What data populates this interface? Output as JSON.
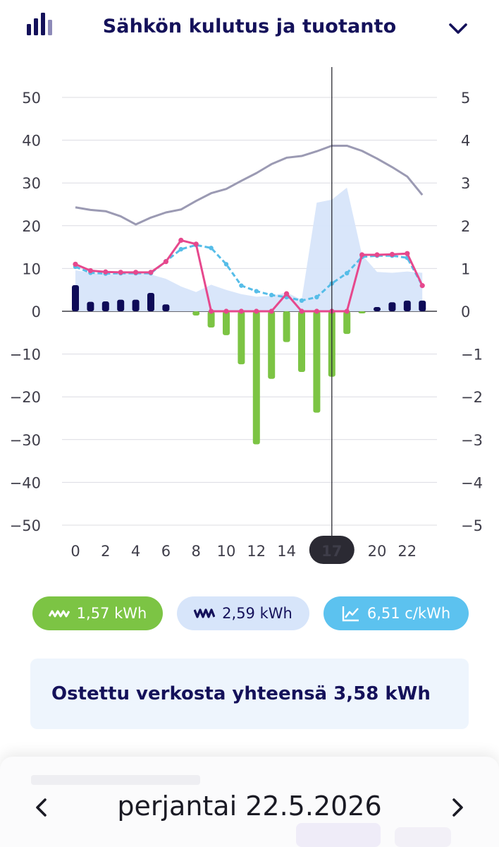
{
  "header": {
    "title": "Sähkön kulutus ja tuotanto",
    "left_icon": "bar-chart-icon",
    "right_icon": "chevron-down-icon"
  },
  "chart_data": {
    "type": "bar",
    "x": [
      0,
      1,
      2,
      3,
      4,
      5,
      6,
      7,
      8,
      9,
      10,
      11,
      12,
      13,
      14,
      15,
      16,
      17,
      18,
      19,
      20,
      21,
      22,
      23
    ],
    "x_tick_labels": [
      "0",
      "2",
      "4",
      "6",
      "8",
      "10",
      "12",
      "14",
      "17",
      "20",
      "22"
    ],
    "y_left_ticks": [
      "50",
      "40",
      "30",
      "20",
      "10",
      "0",
      "−10",
      "−20",
      "−30",
      "−40",
      "−50"
    ],
    "y_right_ticks": [
      "5",
      "4",
      "3",
      "2",
      "1",
      "0",
      "−1",
      "−2",
      "−3",
      "−4",
      "−5"
    ],
    "ylim_left": [
      -50,
      50
    ],
    "ylim_right": [
      -5,
      5
    ],
    "selected_hour": "17",
    "grid": true,
    "series": [
      {
        "kind": "bar",
        "color": "#0e0b57",
        "values": [
          6.1,
          2.2,
          2.3,
          2.7,
          2.7,
          4.3,
          1.6,
          0,
          0,
          0,
          0,
          0,
          0,
          0,
          0,
          0,
          0,
          0,
          0,
          0,
          1.0,
          2.1,
          2.5,
          2.5
        ]
      },
      {
        "kind": "bar",
        "color": "#7cc444",
        "values": [
          0,
          0,
          0,
          0,
          0,
          0,
          0,
          0,
          -1.0,
          -3.8,
          -5.6,
          -12.4,
          -31.1,
          -15.8,
          -7.2,
          -14.2,
          -23.7,
          -15.3,
          -5.3,
          -0.3,
          0,
          0,
          0,
          0
        ]
      },
      {
        "kind": "area",
        "color": "#d7e5fa",
        "values": [
          9.6,
          9.0,
          8.7,
          8.7,
          8.9,
          8.6,
          7.6,
          5.8,
          4.5,
          6.2,
          5.0,
          4.0,
          3.4,
          3.6,
          4.4,
          2.7,
          25.4,
          26.1,
          28.9,
          13.2,
          9.2,
          9.0,
          9.3,
          9.0
        ]
      },
      {
        "kind": "line",
        "axis": "right",
        "color": "#9b9ab3",
        "values": [
          2.43,
          2.37,
          2.34,
          2.22,
          2.03,
          2.19,
          2.31,
          2.38,
          2.58,
          2.76,
          2.86,
          3.05,
          3.23,
          3.44,
          3.59,
          3.63,
          3.74,
          3.87,
          3.87,
          3.75,
          3.57,
          3.37,
          3.15,
          2.72
        ]
      },
      {
        "kind": "line",
        "axis": "right",
        "color": "#56bde8",
        "dashed": true,
        "values": [
          1.04,
          0.9,
          0.88,
          0.89,
          0.89,
          0.89,
          1.17,
          1.45,
          1.55,
          1.48,
          1.1,
          0.6,
          0.47,
          0.38,
          0.33,
          0.25,
          0.33,
          0.65,
          0.89,
          1.27,
          1.3,
          1.3,
          1.25,
          0.6
        ]
      },
      {
        "kind": "line",
        "axis": "right",
        "color": "#e6488d",
        "values": [
          1.1,
          0.95,
          0.92,
          0.91,
          0.91,
          0.91,
          1.16,
          1.66,
          1.57,
          0,
          0,
          0,
          0,
          0,
          0.41,
          0,
          0,
          0,
          0,
          1.32,
          1.32,
          1.33,
          1.35,
          0.6
        ]
      }
    ]
  },
  "chips": {
    "production": {
      "label": "1,57 kWh",
      "color": "#7cc444",
      "icon": "solar-wave-icon"
    },
    "consumption": {
      "label": "2,59 kWh",
      "color": "#d7e5fa",
      "icon": "consumption-wave-icon"
    },
    "price": {
      "label": "6,51 c/kWh",
      "color": "#5cc2ef",
      "icon": "price-chart-icon"
    }
  },
  "summary": {
    "text": "Ostettu verkosta yhteensä 3,58 kWh"
  },
  "date_nav": {
    "date": "perjantai 22.5.2026",
    "prev_icon": "chevron-left-icon",
    "next_icon": "chevron-right-icon"
  }
}
